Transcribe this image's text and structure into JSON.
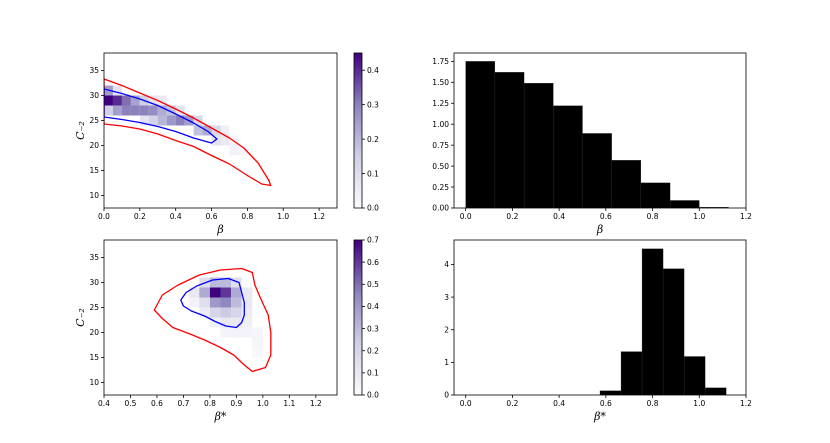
{
  "chart_data": [
    {
      "type": "heatmap",
      "panel": "top-left",
      "xlabel": "β",
      "ylabel": "C₋₂",
      "xlim": [
        0.0,
        1.3
      ],
      "ylim": [
        7.5,
        38.5
      ],
      "xticks": [
        "0.0",
        "0.2",
        "0.4",
        "0.6",
        "0.8",
        "1.0",
        "1.2"
      ],
      "yticks": [
        "10",
        "15",
        "20",
        "25",
        "30",
        "35"
      ],
      "colorbar": {
        "range": [
          0,
          0.45
        ],
        "ticks": [
          "0.0",
          "0.1",
          "0.2",
          "0.3",
          "0.4"
        ]
      },
      "contours": [
        {
          "color": "#ff0000",
          "points": [
            [
              0.0,
              33.3
            ],
            [
              0.1,
              32.0
            ],
            [
              0.2,
              30.5
            ],
            [
              0.3,
              29.0
            ],
            [
              0.4,
              27.3
            ],
            [
              0.5,
              25.5
            ],
            [
              0.6,
              23.5
            ],
            [
              0.7,
              21.5
            ],
            [
              0.78,
              19.5
            ],
            [
              0.86,
              16.5
            ],
            [
              0.92,
              13.0
            ],
            [
              0.93,
              12.0
            ],
            [
              0.88,
              12.3
            ],
            [
              0.8,
              14.0
            ],
            [
              0.7,
              16.3
            ],
            [
              0.6,
              18.0
            ],
            [
              0.5,
              19.8
            ],
            [
              0.4,
              21.0
            ],
            [
              0.3,
              22.3
            ],
            [
              0.2,
              23.3
            ],
            [
              0.1,
              23.9
            ],
            [
              0.0,
              24.3
            ]
          ]
        },
        {
          "color": "#0000ff",
          "points": [
            [
              0.0,
              31.3
            ],
            [
              0.1,
              30.4
            ],
            [
              0.2,
              29.3
            ],
            [
              0.3,
              28.0
            ],
            [
              0.4,
              26.3
            ],
            [
              0.5,
              24.5
            ],
            [
              0.58,
              22.8
            ],
            [
              0.63,
              21.3
            ],
            [
              0.6,
              20.5
            ],
            [
              0.5,
              21.5
            ],
            [
              0.4,
              22.8
            ],
            [
              0.3,
              23.8
            ],
            [
              0.2,
              24.6
            ],
            [
              0.1,
              25.2
            ],
            [
              0.0,
              25.7
            ]
          ]
        }
      ],
      "cells": [
        [
          0.0,
          30.0,
          0.25
        ],
        [
          0.05,
          30.0,
          0.08
        ],
        [
          0.0,
          28.0,
          0.45
        ],
        [
          0.05,
          28.0,
          0.4
        ],
        [
          0.1,
          28.0,
          0.32
        ],
        [
          0.15,
          28.0,
          0.24
        ],
        [
          0.2,
          28.0,
          0.15
        ],
        [
          0.25,
          28.0,
          0.08
        ],
        [
          0.3,
          28.0,
          0.06
        ],
        [
          0.0,
          26.0,
          0.15
        ],
        [
          0.05,
          26.0,
          0.25
        ],
        [
          0.1,
          26.0,
          0.3
        ],
        [
          0.15,
          26.0,
          0.3
        ],
        [
          0.2,
          26.0,
          0.3
        ],
        [
          0.25,
          26.0,
          0.28
        ],
        [
          0.3,
          26.0,
          0.22
        ],
        [
          0.35,
          26.0,
          0.18
        ],
        [
          0.4,
          26.0,
          0.08
        ],
        [
          0.2,
          24.0,
          0.08
        ],
        [
          0.25,
          24.0,
          0.14
        ],
        [
          0.3,
          24.0,
          0.2
        ],
        [
          0.35,
          24.0,
          0.26
        ],
        [
          0.4,
          24.0,
          0.3
        ],
        [
          0.45,
          24.0,
          0.25
        ],
        [
          0.5,
          24.0,
          0.12
        ],
        [
          0.5,
          22.0,
          0.18
        ],
        [
          0.55,
          22.0,
          0.22
        ],
        [
          0.6,
          22.0,
          0.12
        ],
        [
          0.65,
          22.0,
          0.04
        ],
        [
          0.6,
          20.0,
          0.08
        ],
        [
          0.65,
          20.0,
          0.06
        ],
        [
          0.7,
          20.0,
          0.03
        ],
        [
          0.7,
          18.0,
          0.03
        ],
        [
          0.75,
          18.0,
          0.02
        ]
      ]
    },
    {
      "type": "bar",
      "panel": "top-right",
      "xlabel": "β",
      "ylabel": "",
      "xlim": [
        -0.05,
        1.2
      ],
      "ylim": [
        0,
        1.85
      ],
      "xticks": [
        "0.0",
        "0.2",
        "0.4",
        "0.6",
        "0.8",
        "1.0",
        "1.2"
      ],
      "yticks": [
        "0.00",
        "0.25",
        "0.50",
        "0.75",
        "1.00",
        "1.25",
        "1.50",
        "1.75"
      ],
      "bin_edges": [
        0.0,
        0.125,
        0.25,
        0.375,
        0.5,
        0.625,
        0.75,
        0.875,
        1.0,
        1.125
      ],
      "values": [
        1.75,
        1.62,
        1.49,
        1.22,
        0.89,
        0.57,
        0.3,
        0.09,
        0.01
      ]
    },
    {
      "type": "heatmap",
      "panel": "bottom-left",
      "xlabel": "β*",
      "ylabel": "C₋₂",
      "xlim": [
        0.4,
        1.28
      ],
      "ylim": [
        7.5,
        38.5
      ],
      "xticks": [
        "0.4",
        "0.5",
        "0.6",
        "0.7",
        "0.8",
        "0.9",
        "1.0",
        "1.1",
        "1.2"
      ],
      "yticks": [
        "10",
        "15",
        "20",
        "25",
        "30",
        "35"
      ],
      "colorbar": {
        "range": [
          0,
          0.7
        ],
        "ticks": [
          "0.0",
          "0.1",
          "0.2",
          "0.3",
          "0.4",
          "0.5",
          "0.6",
          "0.7"
        ]
      },
      "contours": [
        {
          "color": "#ff0000",
          "points": [
            [
              0.6,
              25.5
            ],
            [
              0.62,
              27.5
            ],
            [
              0.68,
              29.5
            ],
            [
              0.76,
              31.5
            ],
            [
              0.84,
              32.5
            ],
            [
              0.92,
              32.8
            ],
            [
              0.96,
              32.0
            ],
            [
              0.97,
              29.5
            ],
            [
              0.99,
              27.0
            ],
            [
              1.02,
              23.5
            ],
            [
              1.03,
              20.0
            ],
            [
              1.03,
              15.5
            ],
            [
              1.01,
              13.0
            ],
            [
              0.96,
              12.2
            ],
            [
              0.93,
              13.5
            ],
            [
              0.89,
              15.5
            ],
            [
              0.84,
              17.0
            ],
            [
              0.78,
              18.5
            ],
            [
              0.72,
              19.8
            ],
            [
              0.66,
              21.0
            ],
            [
              0.62,
              22.8
            ],
            [
              0.59,
              24.5
            ],
            [
              0.6,
              25.5
            ]
          ]
        },
        {
          "color": "#0000ff",
          "points": [
            [
              0.69,
              26.5
            ],
            [
              0.71,
              28.0
            ],
            [
              0.75,
              29.3
            ],
            [
              0.81,
              30.5
            ],
            [
              0.87,
              30.8
            ],
            [
              0.91,
              30.0
            ],
            [
              0.92,
              28.0
            ],
            [
              0.93,
              26.0
            ],
            [
              0.93,
              23.5
            ],
            [
              0.92,
              22.0
            ],
            [
              0.9,
              21.0
            ],
            [
              0.86,
              21.3
            ],
            [
              0.82,
              22.2
            ],
            [
              0.78,
              23.3
            ],
            [
              0.73,
              24.3
            ],
            [
              0.7,
              25.3
            ],
            [
              0.69,
              26.5
            ]
          ]
        }
      ],
      "cells": [
        [
          0.72,
          27.0,
          0.1
        ],
        [
          0.76,
          27.0,
          0.35
        ],
        [
          0.8,
          27.0,
          0.7
        ],
        [
          0.84,
          27.0,
          0.6
        ],
        [
          0.88,
          27.0,
          0.35
        ],
        [
          0.92,
          27.0,
          0.1
        ],
        [
          0.76,
          29.0,
          0.15
        ],
        [
          0.8,
          29.0,
          0.3
        ],
        [
          0.84,
          29.0,
          0.3
        ],
        [
          0.88,
          29.0,
          0.15
        ],
        [
          0.72,
          25.0,
          0.05
        ],
        [
          0.76,
          25.0,
          0.15
        ],
        [
          0.8,
          25.0,
          0.4
        ],
        [
          0.84,
          25.0,
          0.45
        ],
        [
          0.88,
          25.0,
          0.3
        ],
        [
          0.92,
          25.0,
          0.1
        ],
        [
          0.76,
          23.0,
          0.08
        ],
        [
          0.8,
          23.0,
          0.2
        ],
        [
          0.84,
          23.0,
          0.25
        ],
        [
          0.88,
          23.0,
          0.2
        ],
        [
          0.92,
          23.0,
          0.08
        ],
        [
          0.8,
          21.0,
          0.06
        ],
        [
          0.84,
          21.0,
          0.1
        ],
        [
          0.88,
          21.0,
          0.1
        ],
        [
          0.92,
          21.0,
          0.06
        ],
        [
          0.84,
          19.0,
          0.04
        ],
        [
          0.88,
          19.0,
          0.05
        ],
        [
          0.92,
          19.0,
          0.04
        ],
        [
          0.96,
          19.0,
          0.03
        ],
        [
          0.96,
          17.0,
          0.03
        ],
        [
          0.96,
          15.0,
          0.02
        ]
      ]
    },
    {
      "type": "bar",
      "panel": "bottom-right",
      "xlabel": "β*",
      "ylabel": "",
      "xlim": [
        -0.05,
        1.2
      ],
      "ylim": [
        0,
        4.75
      ],
      "xticks": [
        "0.0",
        "0.2",
        "0.4",
        "0.6",
        "0.8",
        "1.0",
        "1.2"
      ],
      "yticks": [
        "0",
        "1",
        "2",
        "3",
        "4"
      ],
      "bin_edges": [
        0.575,
        0.665,
        0.755,
        0.845,
        0.935,
        1.025,
        1.115
      ],
      "values": [
        0.13,
        1.33,
        4.48,
        3.87,
        1.18,
        0.22
      ]
    }
  ]
}
